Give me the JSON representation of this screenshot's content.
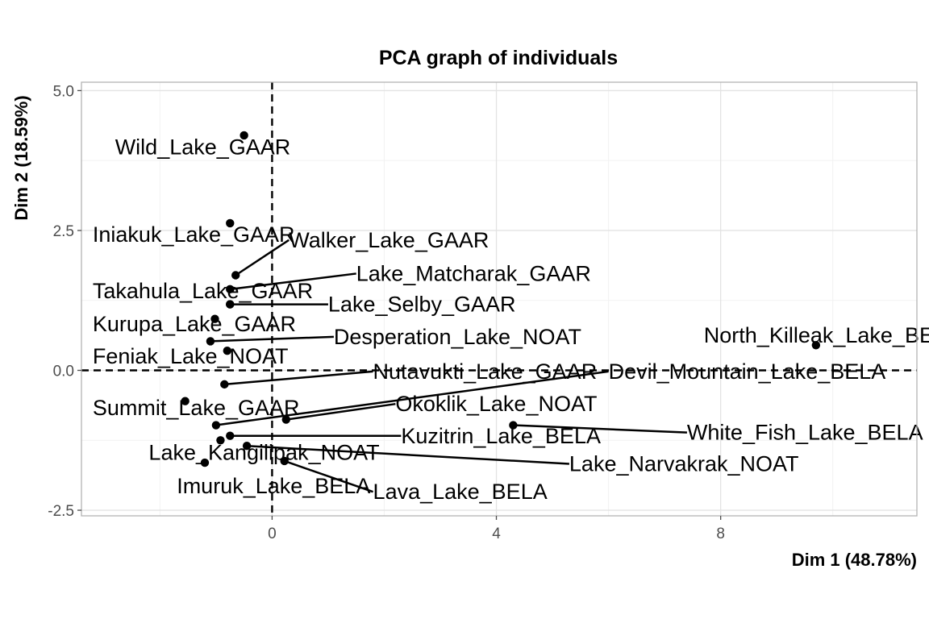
{
  "chart_data": {
    "type": "scatter",
    "title": "PCA graph of individuals",
    "xlabel": "Dim 1 (48.78%)",
    "ylabel": "Dim 2 (18.59%)",
    "xlim": [
      -3.4,
      11.5
    ],
    "ylim": [
      -2.6,
      5.15
    ],
    "x_ticks": [
      0,
      4,
      8
    ],
    "y_ticks": [
      -2.5,
      0.0,
      2.5,
      5.0
    ],
    "x_tick_labels": [
      "0",
      "4",
      "8"
    ],
    "y_tick_labels": [
      "-2.5",
      "0.0",
      "2.5",
      "5.0"
    ],
    "grid": true,
    "reference_lines": {
      "x": 0,
      "y": 0
    },
    "points": [
      {
        "name": "Wild_Lake_GAAR",
        "x": -0.5,
        "y": 4.2,
        "lx": -2.8,
        "ly": 3.86,
        "leader": false
      },
      {
        "name": "Iniakuk_Lake_GAAR",
        "x": -0.75,
        "y": 2.63,
        "lx": -3.2,
        "ly": 2.3,
        "leader": false
      },
      {
        "name": "Walker_Lake_GAAR",
        "x": -0.65,
        "y": 1.7,
        "lx": 0.3,
        "ly": 2.2,
        "leader": true
      },
      {
        "name": "Lake_Matcharak_GAAR",
        "x": -0.75,
        "y": 1.45,
        "lx": 1.5,
        "ly": 1.6,
        "leader": true
      },
      {
        "name": "Takahula_Lake_GAAR",
        "x": -0.75,
        "y": 1.18,
        "lx": -3.2,
        "ly": 1.29,
        "leader": false
      },
      {
        "name": "Lake_Selby_GAAR",
        "x": -0.75,
        "y": 1.18,
        "lx": 1.0,
        "ly": 1.05,
        "leader": true
      },
      {
        "name": "Kurupa_Lake_GAAR",
        "x": -1.02,
        "y": 0.92,
        "lx": -3.2,
        "ly": 0.7,
        "leader": false
      },
      {
        "name": "Desperation_Lake_NOAT",
        "x": -1.1,
        "y": 0.52,
        "lx": 1.1,
        "ly": 0.47,
        "leader": true
      },
      {
        "name": "Feniak_Lake_NOAT",
        "x": -0.8,
        "y": 0.35,
        "lx": -3.2,
        "ly": 0.12,
        "leader": false
      },
      {
        "name": "North_Killeak_Lake_BELA",
        "x": 9.7,
        "y": 0.45,
        "lx": 7.7,
        "ly": 0.5,
        "leader": false
      },
      {
        "name": "Nutavukti_Lake_GAAR",
        "x": -0.85,
        "y": -0.25,
        "lx": 1.8,
        "ly": -0.15,
        "leader": true
      },
      {
        "name": "Devil_Mountain_Lake_BELA",
        "x": -1.0,
        "y": -0.98,
        "lx": 6.0,
        "ly": -0.15,
        "leader": true
      },
      {
        "name": "Summit_Lake_GAAR",
        "x": -1.55,
        "y": -0.55,
        "lx": -3.2,
        "ly": -0.8,
        "leader": false
      },
      {
        "name": "Okoklik_Lake_NOAT",
        "x": 0.25,
        "y": -0.88,
        "lx": 2.2,
        "ly": -0.73,
        "leader": true
      },
      {
        "name": "White_Fish_Lake_BELA",
        "x": 4.3,
        "y": -0.98,
        "lx": 7.4,
        "ly": -1.24,
        "leader": true
      },
      {
        "name": "Kuzitrin_Lake_BELA",
        "x": -0.75,
        "y": -1.17,
        "lx": 2.3,
        "ly": -1.3,
        "leader": true
      },
      {
        "name": "Lake_Kangilipak_NOAT",
        "x": -0.92,
        "y": -1.25,
        "lx": -2.2,
        "ly": -1.6,
        "leader": false
      },
      {
        "name": "Lake_Narvakrak_NOAT",
        "x": -0.45,
        "y": -1.35,
        "lx": 5.3,
        "ly": -1.8,
        "leader": true
      },
      {
        "name": "Imuruk_Lake_BELA",
        "x": -1.2,
        "y": -1.65,
        "lx": -1.7,
        "ly": -2.2,
        "leader": false
      },
      {
        "name": "Lava_Lake_BELA",
        "x": 0.22,
        "y": -1.62,
        "lx": 1.8,
        "ly": -2.3,
        "leader": true
      }
    ]
  }
}
